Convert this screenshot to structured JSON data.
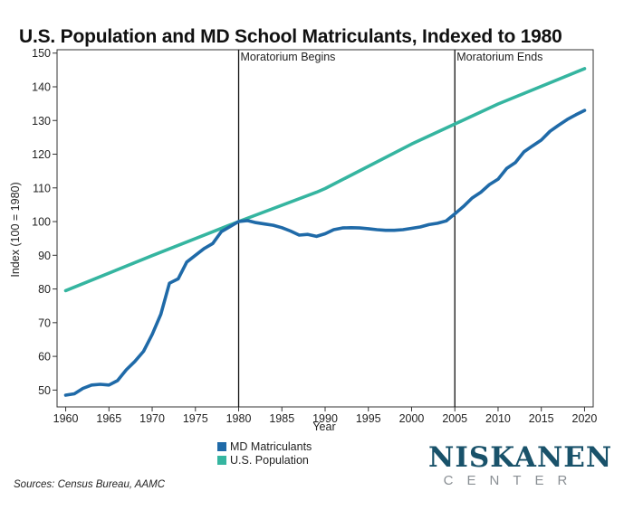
{
  "chart_data": {
    "type": "line",
    "title": "U.S. Population and MD School Matriculants, Indexed to 1980",
    "xlabel": "Year",
    "ylabel": "Index (100 = 1980)",
    "xlim": [
      1959,
      2021
    ],
    "ylim": [
      45,
      151
    ],
    "x_ticks": [
      1960,
      1965,
      1970,
      1975,
      1980,
      1985,
      1990,
      1995,
      2000,
      2005,
      2010,
      2015,
      2020
    ],
    "y_ticks": [
      50,
      60,
      70,
      80,
      90,
      100,
      110,
      120,
      130,
      140,
      150
    ],
    "grid": false,
    "legend_position": "bottom",
    "annotations": [
      {
        "x": 1980,
        "label": "Moratorium Begins"
      },
      {
        "x": 2005,
        "label": "Moratorium Ends"
      }
    ],
    "series": [
      {
        "name": "MD Matriculants",
        "color": "#1f6aa8",
        "x": [
          1960,
          1961,
          1962,
          1963,
          1964,
          1965,
          1966,
          1967,
          1968,
          1969,
          1970,
          1971,
          1972,
          1973,
          1974,
          1975,
          1976,
          1977,
          1978,
          1979,
          1980,
          1981,
          1982,
          1983,
          1984,
          1985,
          1986,
          1987,
          1988,
          1989,
          1990,
          1991,
          1992,
          1993,
          1994,
          1995,
          1996,
          1997,
          1998,
          1999,
          2000,
          2001,
          2002,
          2003,
          2004,
          2005,
          2006,
          2007,
          2008,
          2009,
          2010,
          2011,
          2012,
          2013,
          2014,
          2015,
          2016,
          2017,
          2018,
          2019,
          2020
        ],
        "values": [
          48.5,
          48.9,
          50.5,
          51.5,
          51.7,
          51.5,
          52.8,
          56.0,
          58.5,
          61.5,
          66.5,
          72.5,
          81.7,
          83.0,
          88.0,
          90.0,
          92.0,
          93.5,
          97.0,
          98.5,
          100.0,
          100.3,
          99.7,
          99.3,
          98.9,
          98.2,
          97.2,
          96.0,
          96.2,
          95.6,
          96.4,
          97.6,
          98.1,
          98.2,
          98.1,
          97.9,
          97.6,
          97.4,
          97.4,
          97.6,
          98.0,
          98.4,
          99.1,
          99.5,
          100.2,
          102.3,
          104.5,
          107.0,
          108.7,
          111.0,
          112.6,
          115.8,
          117.5,
          120.7,
          122.5,
          124.2,
          126.8,
          128.6,
          130.3,
          131.7,
          133.0
        ]
      },
      {
        "name": "U.S. Population",
        "color": "#35b5a0",
        "x": [
          1960,
          1970,
          1980,
          1989,
          1990,
          2000,
          2010,
          2020
        ],
        "values": [
          79.5,
          89.9,
          100.0,
          108.7,
          109.8,
          123.0,
          134.9,
          145.4
        ]
      }
    ]
  },
  "logo": {
    "main": "NISKANEN",
    "sub": "CENTER"
  },
  "source": "Sources: Census Bureau, AAMC"
}
